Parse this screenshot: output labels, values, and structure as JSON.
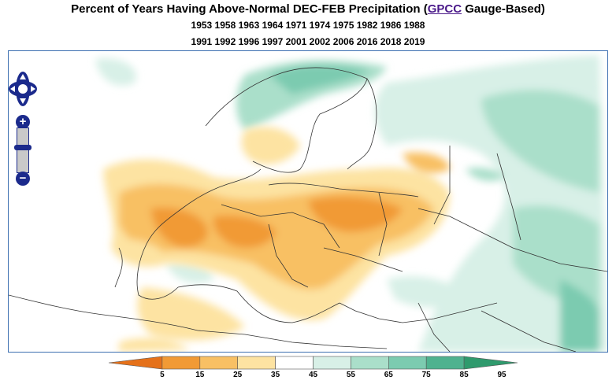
{
  "title": {
    "prefix": "Percent of Years Having Above-Normal DEC-FEB Precipitation (",
    "link": "GPCC",
    "suffix": " Gauge-Based)"
  },
  "years": {
    "line1": "1953 1958 1963 1964 1971 1974 1975 1982 1986 1988",
    "line2": "1991 1992 1996 1997 2001 2002 2006 2016 2018 2019"
  },
  "map": {
    "region": "Europe",
    "variable": "Percent of years with above-normal precipitation"
  },
  "controls": {
    "zoom_in": "+",
    "zoom_out": "−"
  },
  "legend": {
    "labels": [
      "5",
      "15",
      "25",
      "35",
      "45",
      "55",
      "65",
      "75",
      "85",
      "95"
    ],
    "colors": [
      "#e5711a",
      "#f19a35",
      "#f8c064",
      "#fde3a2",
      "#ffffff",
      "#d8f0e7",
      "#aadfca",
      "#7ccbb0",
      "#4fb28f",
      "#2f9a6d"
    ]
  }
}
